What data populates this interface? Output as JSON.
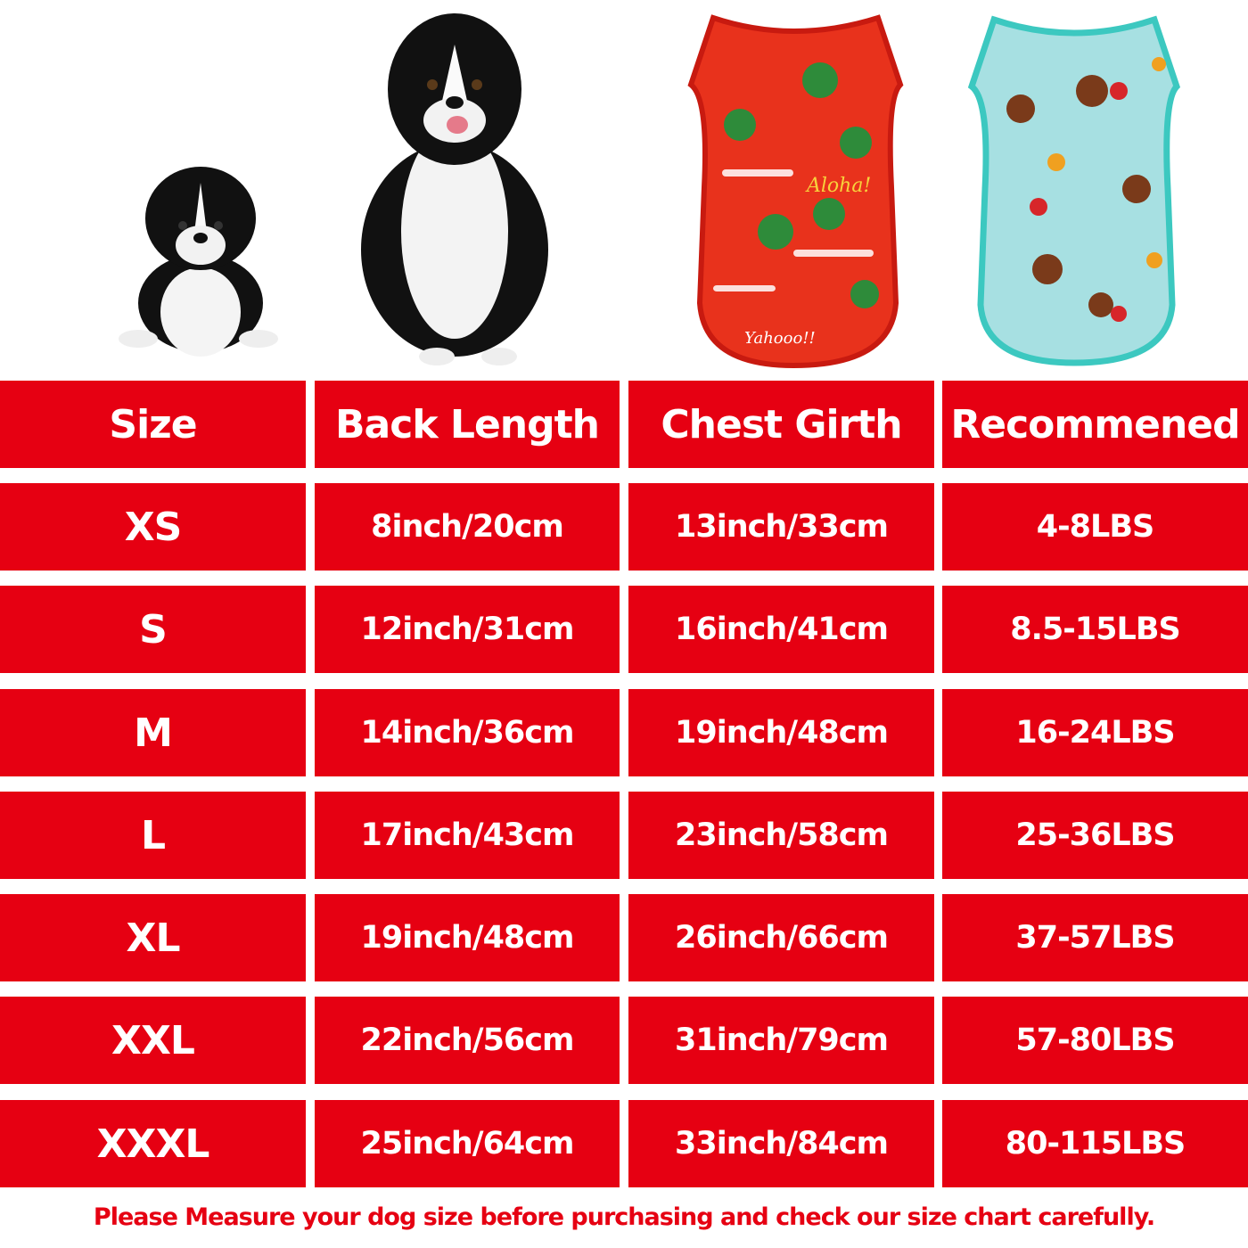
{
  "images": {
    "puppy": "puppy-photo",
    "adult_dog": "adult-dog-photo",
    "red_shirt": {
      "name": "red-hawaiian-shirt",
      "print_text_1": "Aloha!",
      "print_text_2": "Yahooo!!",
      "color": "#e8321c"
    },
    "teal_shirt": {
      "name": "teal-hawaiian-shirt",
      "color": "#9fdde0",
      "trim": "#3cc8c0"
    }
  },
  "table": {
    "headers": [
      "Size",
      "Back Length",
      "Chest Girth",
      "Recommened"
    ],
    "rows": [
      [
        "XS",
        "8inch/20cm",
        "13inch/33cm",
        "4-8LBS"
      ],
      [
        "S",
        "12inch/31cm",
        "16inch/41cm",
        "8.5-15LBS"
      ],
      [
        "M",
        "14inch/36cm",
        "19inch/48cm",
        "16-24LBS"
      ],
      [
        "L",
        "17inch/43cm",
        "23inch/58cm",
        "25-36LBS"
      ],
      [
        "XL",
        "19inch/48cm",
        "26inch/66cm",
        "37-57LBS"
      ],
      [
        "XXL",
        "22inch/56cm",
        "31inch/79cm",
        "57-80LBS"
      ],
      [
        "XXXL",
        "25inch/64cm",
        "33inch/84cm",
        "80-115LBS"
      ]
    ]
  },
  "note": "Please Measure your dog size before purchasing and check our size chart carefully.",
  "colors": {
    "accent": "#e60012",
    "text_on_accent": "#ffffff"
  }
}
